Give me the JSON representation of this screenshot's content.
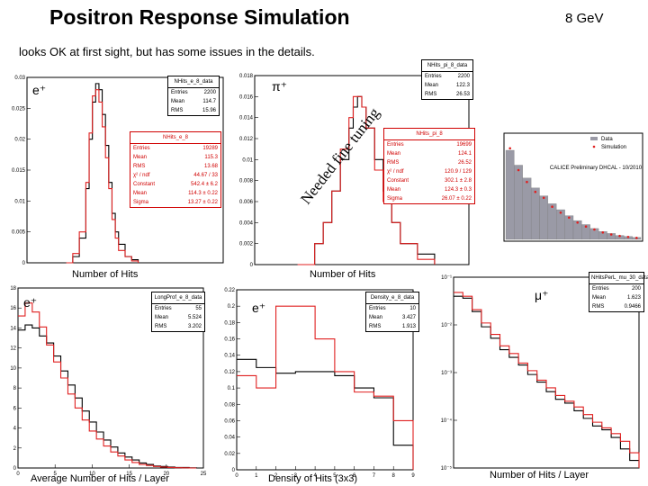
{
  "header": {
    "title": "Positron Response Simulation",
    "energy": "8 GeV",
    "subtitle": "looks OK at first sight, but has some issues in the details."
  },
  "labels": {
    "eplus": "e⁺",
    "piplus": "π⁺",
    "muplus": "μ⁺",
    "overlay_text": "Needed fine tuning"
  },
  "colors": {
    "data": "#000000",
    "sim": "#e02020",
    "sim_fill": "#9a9aa6"
  },
  "chart_data": [
    {
      "id": "nhits_e",
      "type": "line",
      "title": "e⁺",
      "xlabel": "Number of Hits",
      "ylabel": "",
      "xlim": [
        0,
        300
      ],
      "ylim": [
        0,
        0.03
      ],
      "yticks": [
        "0.03",
        "0.025",
        "0.02",
        "0.015",
        "0.01",
        "0.005",
        "0"
      ],
      "x": [
        60,
        70,
        80,
        90,
        95,
        100,
        105,
        110,
        115,
        120,
        125,
        130,
        135,
        140,
        150,
        160,
        170
      ],
      "series": [
        {
          "name": "data",
          "values": [
            0,
            0.001,
            0.004,
            0.012,
            0.02,
            0.026,
            0.029,
            0.028,
            0.024,
            0.019,
            0.013,
            0.008,
            0.005,
            0.003,
            0.001,
            0.0005,
            0
          ]
        },
        {
          "name": "simulation",
          "values": [
            0,
            0.0015,
            0.005,
            0.013,
            0.021,
            0.027,
            0.028,
            0.026,
            0.022,
            0.017,
            0.012,
            0.007,
            0.004,
            0.002,
            0.001,
            0.0003,
            0
          ]
        }
      ],
      "stats_data": {
        "name": "NHits_e_8_data",
        "rows": [
          [
            "Entries",
            "2200"
          ],
          [
            "Mean",
            "114.7"
          ],
          [
            "RMS",
            "15.96"
          ]
        ]
      },
      "stats_sim": {
        "name": "NHits_e_8",
        "rows": [
          [
            "Entries",
            "19289"
          ],
          [
            "Mean",
            "115.3"
          ],
          [
            "RMS",
            "13.68"
          ],
          [
            "χ² / ndf",
            "44.67 / 33"
          ],
          [
            "Constant",
            "542.4 ± 6.2"
          ],
          [
            "Mean",
            "114.3 ± 0.22"
          ],
          [
            "Sigma",
            "13.27 ± 0.22"
          ]
        ]
      }
    },
    {
      "id": "nhits_pi",
      "type": "line",
      "title": "π⁺",
      "xlabel": "Number of Hits",
      "xlim": [
        0,
        250
      ],
      "ylim": [
        0,
        0.018
      ],
      "yticks": [
        "0.018",
        "0.016",
        "0.014",
        "0.012",
        "0.01",
        "0.008",
        "0.006",
        "0.004",
        "0.002",
        "0"
      ],
      "x": [
        50,
        70,
        80,
        90,
        100,
        110,
        115,
        120,
        125,
        130,
        140,
        150,
        160,
        170,
        190,
        210
      ],
      "series": [
        {
          "name": "data",
          "values": [
            0,
            0.002,
            0.004,
            0.007,
            0.01,
            0.013,
            0.015,
            0.016,
            0.015,
            0.013,
            0.01,
            0.007,
            0.004,
            0.002,
            0.001,
            0
          ]
        },
        {
          "name": "simulation",
          "values": [
            0,
            0.002,
            0.004,
            0.007,
            0.011,
            0.014,
            0.016,
            0.016,
            0.015,
            0.013,
            0.009,
            0.006,
            0.004,
            0.002,
            0.0005,
            0
          ]
        }
      ],
      "stats_data": {
        "name": "NHits_pi_8_data",
        "rows": [
          [
            "Entries",
            "2200"
          ],
          [
            "Mean",
            "122.3"
          ],
          [
            "RMS",
            "26.53"
          ]
        ]
      },
      "stats_sim": {
        "name": "NHits_pi_8",
        "rows": [
          [
            "Entries",
            "19699"
          ],
          [
            "Mean",
            "124.1"
          ],
          [
            "RMS",
            "26.52"
          ],
          [
            "χ² / ndf",
            "120.9 / 129"
          ],
          [
            "Constant",
            "302.1 ± 2.8"
          ],
          [
            "Mean",
            "124.3 ± 0.3"
          ],
          [
            "Sigma",
            "26.07 ± 0.22"
          ]
        ]
      }
    },
    {
      "id": "calice_inset",
      "type": "bar",
      "legend": [
        "Data",
        "Simulation"
      ],
      "note": "CALICE Preliminary DHCAL - 10/2010",
      "values": [
        0.9,
        0.75,
        0.62,
        0.52,
        0.44,
        0.36,
        0.3,
        0.24,
        0.19,
        0.15,
        0.11,
        0.08,
        0.06,
        0.04,
        0.03,
        0.02
      ],
      "points": [
        0.92,
        0.7,
        0.58,
        0.48,
        0.42,
        0.33,
        0.27,
        0.22,
        0.17,
        0.13,
        0.1,
        0.07,
        0.05,
        0.035,
        0.025,
        0.015
      ]
    },
    {
      "id": "long_profile",
      "type": "line",
      "title": "e⁺",
      "xlabel": "Average Number of Hits / Layer",
      "xlim": [
        0,
        26
      ],
      "ylim": [
        0,
        18
      ],
      "yticks": [
        "18",
        "16",
        "14",
        "12",
        "10",
        "8",
        "6",
        "4",
        "2",
        "0"
      ],
      "xticks": [
        "0",
        "5",
        "10",
        "15",
        "20",
        "25"
      ],
      "x": [
        0,
        1,
        2,
        3,
        4,
        5,
        6,
        7,
        8,
        9,
        10,
        11,
        12,
        13,
        14,
        15,
        16,
        17,
        18,
        19,
        20,
        21,
        22,
        23,
        24,
        25
      ],
      "series": [
        {
          "name": "data",
          "values": [
            13.8,
            14.3,
            14.0,
            13.2,
            12.5,
            11.2,
            9.7,
            8.3,
            7.0,
            5.7,
            4.6,
            3.6,
            2.8,
            2.1,
            1.5,
            1.1,
            0.8,
            0.5,
            0.35,
            0.2,
            0.15,
            0.1,
            0.05,
            0.05,
            0.02,
            0
          ]
        },
        {
          "name": "simulation",
          "values": [
            15.2,
            16.5,
            15.6,
            14.1,
            12.3,
            10.6,
            9.0,
            7.4,
            6.0,
            4.8,
            3.7,
            2.9,
            2.2,
            1.6,
            1.2,
            0.8,
            0.55,
            0.35,
            0.25,
            0.15,
            0.1,
            0.05,
            0.03,
            0.02,
            0,
            0
          ]
        }
      ],
      "stats": {
        "name": "LongProf_e_8_data",
        "rows": [
          [
            "Entries",
            "55"
          ],
          [
            "Mean",
            "5.524"
          ],
          [
            "RMS",
            "3.202"
          ]
        ]
      }
    },
    {
      "id": "density",
      "type": "line",
      "title": "e⁺",
      "xlabel": "Density of Hits (3x3)",
      "xlim": [
        0,
        9
      ],
      "ylim": [
        0,
        0.22
      ],
      "yticks": [
        "0.22",
        "0.2",
        "0.18",
        "0.16",
        "0.14",
        "0.12",
        "0.1",
        "0.08",
        "0.06",
        "0.04",
        "0.02",
        "0"
      ],
      "xticks": [
        "0",
        "1",
        "2",
        "3",
        "4",
        "5",
        "6",
        "7",
        "8",
        "9"
      ],
      "x": [
        0,
        1,
        2,
        3,
        4,
        5,
        6,
        7,
        8,
        9
      ],
      "series": [
        {
          "name": "data",
          "values": [
            0.135,
            0.125,
            0.118,
            0.12,
            0.12,
            0.115,
            0.1,
            0.088,
            0.03,
            0
          ]
        },
        {
          "name": "simulation",
          "values": [
            0.115,
            0.1,
            0.2,
            0.2,
            0.16,
            0.12,
            0.095,
            0.09,
            0.06,
            0
          ]
        }
      ],
      "stats": {
        "name": "Density_e_8_data",
        "rows": [
          [
            "Entries",
            "10"
          ],
          [
            "Mean",
            "3.427"
          ],
          [
            "RMS",
            "1.913"
          ]
        ]
      }
    },
    {
      "id": "hits_per_layer",
      "type": "line",
      "title": "μ⁺",
      "xlabel": "Number of Hits / Layer",
      "ylim_log": [
        -5,
        0
      ],
      "yticks": [
        "10⁻¹",
        "10⁻²",
        "10⁻³",
        "10⁻⁴",
        "10⁻⁵"
      ],
      "x": [
        0,
        1,
        2,
        3,
        4,
        5,
        6,
        7,
        8,
        9,
        10,
        11,
        12,
        13,
        14,
        15,
        16,
        17,
        18,
        19,
        20
      ],
      "series": [
        {
          "name": "data",
          "values": [
            -0.5,
            -0.55,
            -0.9,
            -1.3,
            -1.6,
            -1.9,
            -2.1,
            -2.3,
            -2.55,
            -2.75,
            -3.0,
            -3.2,
            -3.3,
            -3.5,
            -3.7,
            -3.9,
            -4.0,
            -4.2,
            -4.5,
            -4.8,
            -5
          ]
        },
        {
          "name": "simulation",
          "values": [
            -0.4,
            -0.5,
            -0.85,
            -1.2,
            -1.5,
            -1.8,
            -2.0,
            -2.25,
            -2.45,
            -2.7,
            -2.9,
            -3.1,
            -3.25,
            -3.4,
            -3.6,
            -3.8,
            -3.95,
            -4.1,
            -4.3,
            -4.6,
            -5
          ]
        }
      ],
      "stats": {
        "name": "NHitsPerL_mu_30_data",
        "rows": [
          [
            "Entries",
            "200"
          ],
          [
            "Mean",
            "1.623"
          ],
          [
            "RMS",
            "0.9466"
          ]
        ]
      }
    }
  ]
}
